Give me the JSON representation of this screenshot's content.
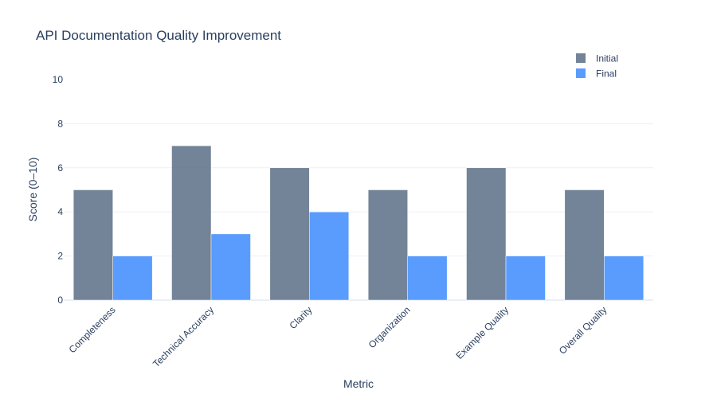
{
  "chart_data": {
    "type": "bar",
    "title": "API Documentation Quality Improvement",
    "xlabel": "Metric",
    "ylabel": "Score (0–10)",
    "categories": [
      "Completeness",
      "Technical Accuracy",
      "Clarity",
      "Organization",
      "Example Quality",
      "Overall Quality"
    ],
    "series": [
      {
        "name": "Initial",
        "values": [
          5,
          7,
          6,
          5,
          6,
          5
        ],
        "color": "#5a6f86"
      },
      {
        "name": "Final",
        "values": [
          2,
          3,
          4,
          2,
          2,
          2
        ],
        "color": "#3d8bfd"
      }
    ],
    "ylim": [
      0,
      11
    ],
    "yticks": [
      0,
      2,
      4,
      6,
      8,
      10
    ],
    "grid": true,
    "legend_position": "top-right"
  }
}
